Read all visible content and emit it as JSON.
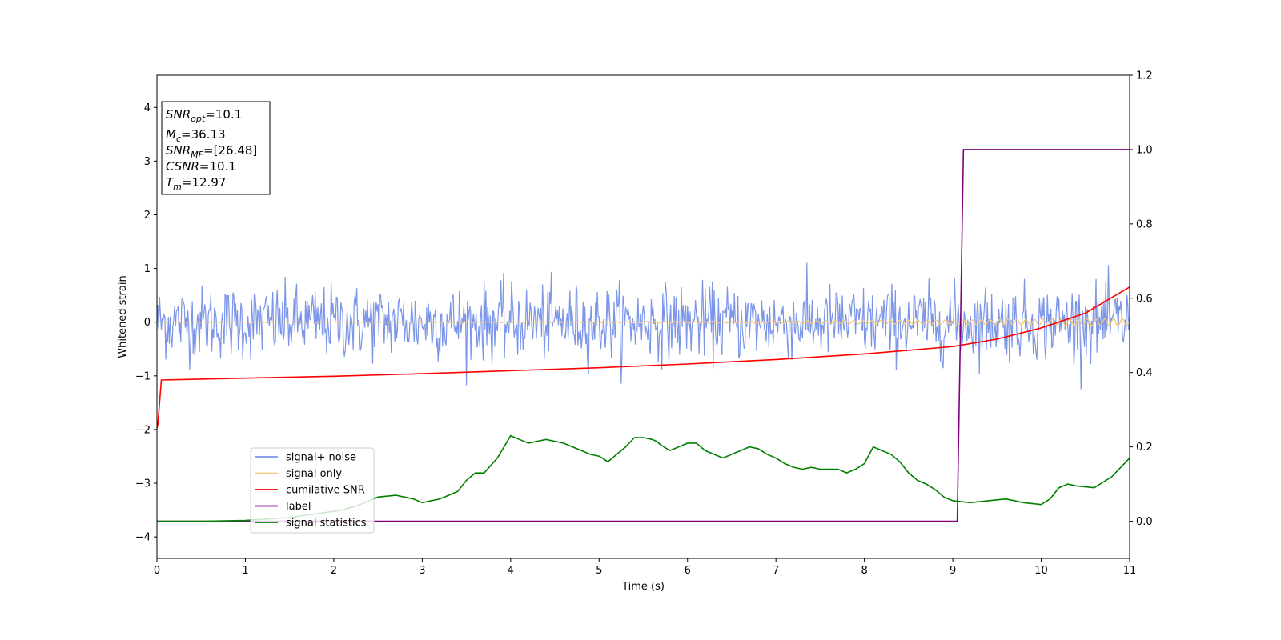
{
  "chart_data": {
    "type": "line",
    "xlabel": "Time (s)",
    "ylabel": "Whitened strain",
    "xlim": [
      0,
      11
    ],
    "ylim_left": [
      -4.4,
      4.6
    ],
    "ylim_right": [
      -0.1,
      1.2
    ],
    "x_ticks": [
      0,
      1,
      2,
      3,
      4,
      5,
      6,
      7,
      8,
      9,
      10,
      11
    ],
    "y_ticks_left": [
      -4,
      -3,
      -2,
      -1,
      0,
      1,
      2,
      3,
      4
    ],
    "y_ticks_right": [
      0.0,
      0.2,
      0.4,
      0.6,
      0.8,
      1.0,
      1.2
    ],
    "grid": false,
    "legend_position": "lower-left",
    "annotation": {
      "lines": [
        {
          "base": "SNR",
          "sub": "opt",
          "rest": "=10.1"
        },
        {
          "base": "M",
          "sub": "c",
          "rest": "=36.13"
        },
        {
          "base": "SNR",
          "sub": "MF",
          "rest": "=[26.48]"
        },
        {
          "base": "CSNR",
          "sub": "",
          "rest": "=10.1"
        },
        {
          "base": "T",
          "sub": "m",
          "rest": "=12.97"
        }
      ]
    },
    "series": [
      {
        "name": "signal+ noise",
        "axis": "left",
        "color": "#7b95e8",
        "kind": "noise",
        "sample_step": 0.01,
        "typical_amplitude": 0.45,
        "peak_amplitude": 1.25
      },
      {
        "name": "signal only",
        "axis": "left",
        "color": "#f5c77a",
        "kind": "chirp",
        "amplitude_start": 0.005,
        "amplitude_end": 0.07
      },
      {
        "name": "cumilative SNR",
        "axis": "right",
        "color": "#ff0000",
        "x": [
          0,
          0.01,
          0.05,
          1,
          2,
          3,
          4,
          5,
          6,
          7,
          8,
          9,
          9.5,
          10,
          10.5,
          11
        ],
        "y": [
          0.25,
          0.26,
          0.38,
          0.385,
          0.39,
          0.397,
          0.405,
          0.413,
          0.423,
          0.435,
          0.45,
          0.47,
          0.49,
          0.52,
          0.56,
          0.63
        ]
      },
      {
        "name": "label",
        "axis": "right",
        "color": "#800080",
        "x": [
          0,
          9.05,
          9.12,
          11
        ],
        "y": [
          0,
          0,
          1,
          1
        ]
      },
      {
        "name": "signal statistics",
        "axis": "right",
        "color": "#008000",
        "x": [
          0,
          0.5,
          1.0,
          1.5,
          1.8,
          2.1,
          2.3,
          2.5,
          2.7,
          2.9,
          3.0,
          3.2,
          3.4,
          3.5,
          3.6,
          3.7,
          3.85,
          4.0,
          4.1,
          4.2,
          4.3,
          4.4,
          4.6,
          4.8,
          4.9,
          5.0,
          5.1,
          5.2,
          5.3,
          5.4,
          5.5,
          5.6,
          5.65,
          5.7,
          5.8,
          5.9,
          6.0,
          6.1,
          6.2,
          6.3,
          6.4,
          6.5,
          6.6,
          6.7,
          6.8,
          6.9,
          7.0,
          7.1,
          7.2,
          7.3,
          7.4,
          7.5,
          7.6,
          7.7,
          7.8,
          7.9,
          8.0,
          8.1,
          8.2,
          8.3,
          8.4,
          8.5,
          8.6,
          8.7,
          8.8,
          8.9,
          9.0,
          9.2,
          9.4,
          9.6,
          9.8,
          10.0,
          10.1,
          10.2,
          10.3,
          10.4,
          10.6,
          10.8,
          11.0
        ],
        "y": [
          0.0,
          0.0,
          0.002,
          0.01,
          0.02,
          0.03,
          0.045,
          0.065,
          0.07,
          0.06,
          0.05,
          0.06,
          0.08,
          0.11,
          0.13,
          0.13,
          0.17,
          0.23,
          0.22,
          0.21,
          0.215,
          0.22,
          0.21,
          0.19,
          0.18,
          0.175,
          0.16,
          0.18,
          0.2,
          0.225,
          0.225,
          0.22,
          0.215,
          0.205,
          0.19,
          0.2,
          0.21,
          0.21,
          0.19,
          0.18,
          0.17,
          0.18,
          0.19,
          0.2,
          0.195,
          0.18,
          0.17,
          0.155,
          0.145,
          0.14,
          0.145,
          0.14,
          0.14,
          0.14,
          0.13,
          0.14,
          0.155,
          0.2,
          0.19,
          0.18,
          0.16,
          0.13,
          0.11,
          0.1,
          0.085,
          0.065,
          0.055,
          0.05,
          0.055,
          0.06,
          0.05,
          0.045,
          0.06,
          0.09,
          0.1,
          0.095,
          0.09,
          0.12,
          0.17
        ]
      }
    ]
  }
}
